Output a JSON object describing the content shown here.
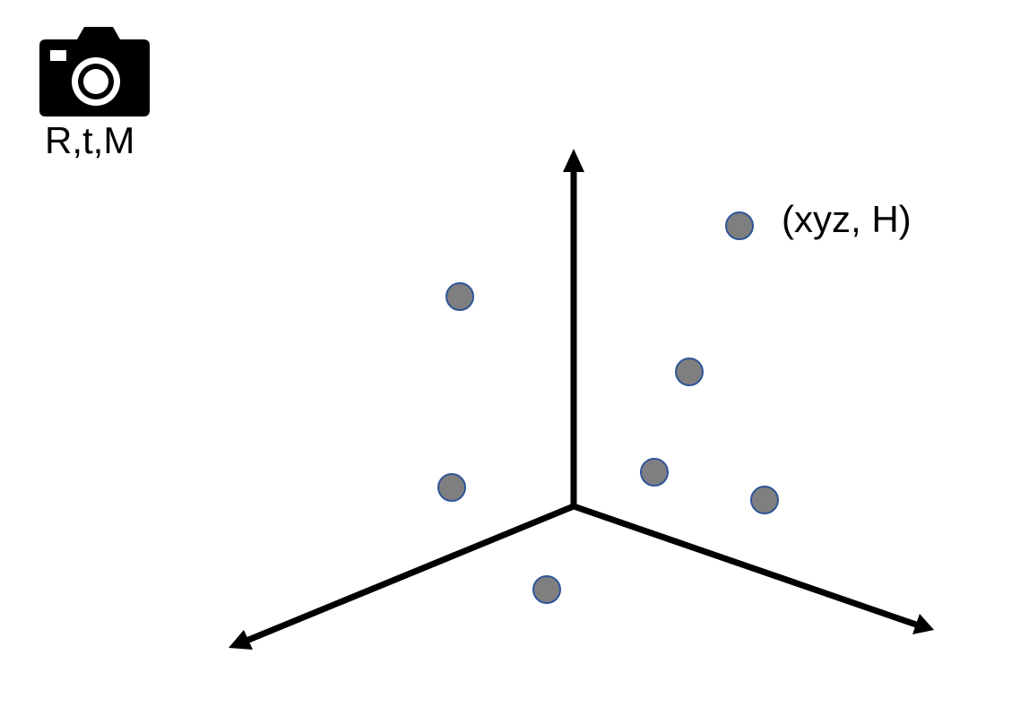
{
  "camera": {
    "icon": "camera-icon",
    "label": "R,t,M"
  },
  "point_label": "(xyz, H)",
  "colors": {
    "axis": "#000000",
    "point_fill": "#7f7f7f",
    "point_stroke": "#2f5597",
    "camera": "#000000"
  },
  "axes": [
    "vertical-axis",
    "left-axis",
    "right-axis"
  ],
  "points": [
    {
      "id": "point-labeled"
    },
    {
      "id": "point-upper-left"
    },
    {
      "id": "point-mid-right"
    },
    {
      "id": "point-center-right"
    },
    {
      "id": "point-left"
    },
    {
      "id": "point-far-right"
    },
    {
      "id": "point-bottom"
    }
  ]
}
